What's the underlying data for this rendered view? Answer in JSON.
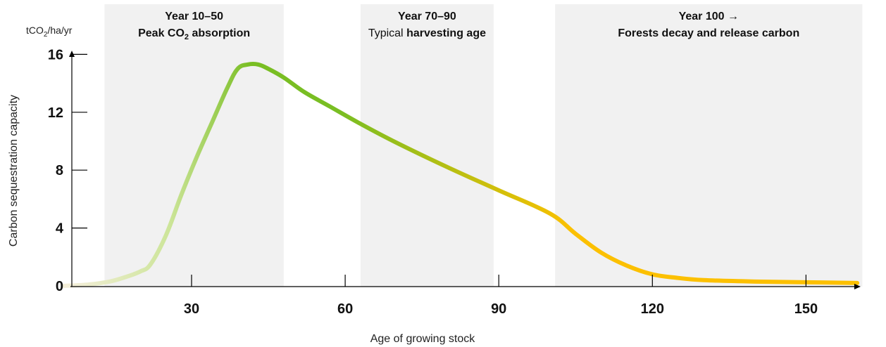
{
  "chart_data": {
    "type": "area",
    "ylabel": "Carbon sequestration capacity",
    "yunit": {
      "base": "tCO",
      "sub": "2",
      "rest": "/ha/yr"
    },
    "xlabel": "Age of growing stock",
    "xticks": [
      30,
      60,
      90,
      120,
      150
    ],
    "yticks": [
      0,
      4,
      8,
      12,
      16
    ],
    "xlim": [
      5,
      160
    ],
    "ylim": [
      0,
      16
    ],
    "bands": [
      {
        "x0": 13,
        "x1": 48,
        "line1": "Year 10–50",
        "line2_parts": [
          {
            "text": "Peak CO",
            "bold": true
          },
          {
            "text": "2",
            "bold": true,
            "sub": true
          },
          {
            "text": " absorption",
            "bold": true
          }
        ]
      },
      {
        "x0": 63,
        "x1": 89,
        "line1": "Year 70–90",
        "line2_parts": [
          {
            "text": "Typical ",
            "bold": false
          },
          {
            "text": "harvesting age",
            "bold": true
          }
        ]
      },
      {
        "x0": 101,
        "x1": 161,
        "line1": "Year 100 →",
        "line2_parts": [
          {
            "text": "Forests decay and release carbon",
            "bold": true
          }
        ]
      }
    ],
    "series": [
      {
        "points": [
          [
            5,
            0.0
          ],
          [
            10,
            0.1
          ],
          [
            14,
            0.3
          ],
          [
            17,
            0.6
          ],
          [
            20,
            1.0
          ],
          [
            22,
            1.5
          ],
          [
            25,
            3.5
          ],
          [
            28,
            6.3
          ],
          [
            31,
            8.9
          ],
          [
            34,
            11.3
          ],
          [
            37,
            13.7
          ],
          [
            39,
            15.0
          ],
          [
            41,
            15.3
          ],
          [
            43,
            15.3
          ],
          [
            45,
            15.0
          ],
          [
            48,
            14.4
          ],
          [
            52,
            13.4
          ],
          [
            57,
            12.4
          ],
          [
            63,
            11.2
          ],
          [
            70,
            9.9
          ],
          [
            80,
            8.2
          ],
          [
            90,
            6.6
          ],
          [
            100,
            5.0
          ],
          [
            105,
            3.6
          ],
          [
            110,
            2.3
          ],
          [
            115,
            1.4
          ],
          [
            120,
            0.8
          ],
          [
            125,
            0.55
          ],
          [
            130,
            0.4
          ],
          [
            140,
            0.3
          ],
          [
            150,
            0.25
          ],
          [
            160,
            0.2
          ]
        ]
      }
    ],
    "colors": {
      "band": "#f1f1f1",
      "curve_start": "#f3eed8",
      "curve_light_green": "#cde59a",
      "curve_green": "#79be23",
      "curve_end": "#fcc000",
      "axis": "#000000"
    }
  }
}
